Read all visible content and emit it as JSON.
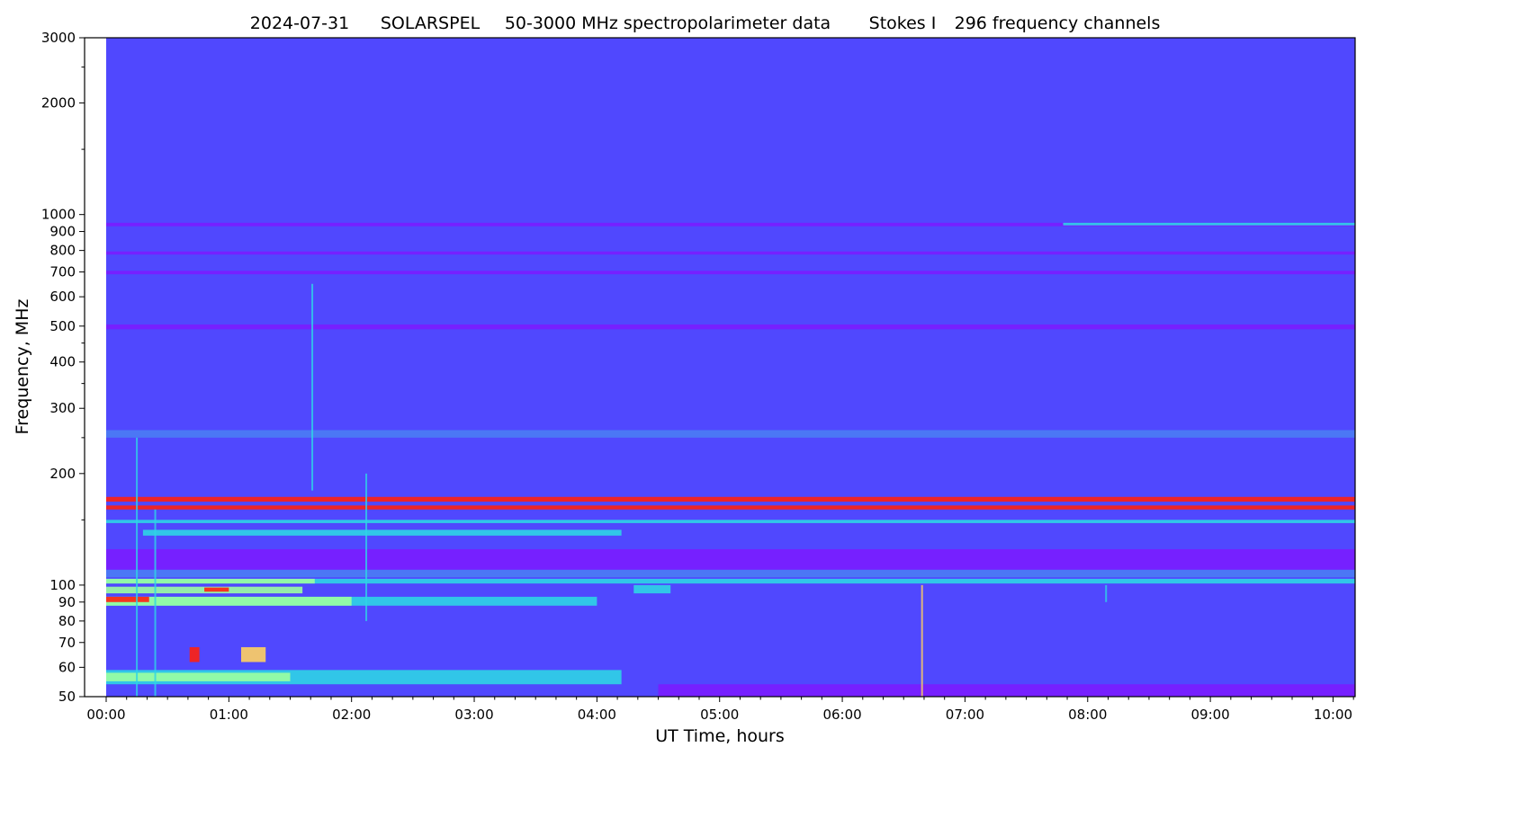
{
  "chart_data": {
    "type": "heatmap",
    "title_parts": [
      "2024-07-31",
      "SOLARSPEL",
      "50-3000 MHz spectropolarimeter data",
      "Stokes I",
      "296 frequency channels"
    ],
    "xlabel": "UT Time, hours",
    "ylabel": "Frequency, MHz",
    "x_range_hours": [
      -0.176,
      10.18
    ],
    "data_start_hours": 0,
    "y_range_mhz": [
      50,
      3000
    ],
    "y_scale": "log",
    "x_ticks": [
      {
        "h": 0,
        "label": "00:00"
      },
      {
        "h": 1,
        "label": "01:00"
      },
      {
        "h": 2,
        "label": "02:00"
      },
      {
        "h": 3,
        "label": "03:00"
      },
      {
        "h": 4,
        "label": "04:00"
      },
      {
        "h": 5,
        "label": "05:00"
      },
      {
        "h": 6,
        "label": "06:00"
      },
      {
        "h": 7,
        "label": "07:00"
      },
      {
        "h": 8,
        "label": "08:00"
      },
      {
        "h": 9,
        "label": "09:00"
      },
      {
        "h": 10,
        "label": "10:00"
      }
    ],
    "x_minor_step_minutes": 10,
    "y_ticks": [
      50,
      60,
      70,
      80,
      90,
      100,
      200,
      300,
      400,
      500,
      600,
      700,
      800,
      900,
      1000,
      2000,
      3000
    ],
    "y_minor_ticks": [
      150,
      250,
      350,
      450,
      1500,
      2500
    ],
    "grid": false,
    "colormap": "rainbow",
    "colors": {
      "background": "#5048fe",
      "purple": "#7a1cff",
      "blue": "#4a7cf4",
      "cyan": "#2ed4e6",
      "green": "#9cffa0",
      "yellow": "#ffd060",
      "red": "#ff2010"
    },
    "bands": [
      {
        "f": [
          930,
          950
        ],
        "t": [
          0,
          10.18
        ],
        "c": "purple"
      },
      {
        "f": [
          935,
          950
        ],
        "t": [
          7.8,
          10.18
        ],
        "c": "cyan"
      },
      {
        "f": [
          780,
          795
        ],
        "t": [
          0,
          10.18
        ],
        "c": "purple"
      },
      {
        "f": [
          690,
          705
        ],
        "t": [
          0,
          10.18
        ],
        "c": "purple"
      },
      {
        "f": [
          490,
          505
        ],
        "t": [
          0,
          10.18
        ],
        "c": "purple"
      },
      {
        "f": [
          250,
          262
        ],
        "t": [
          0,
          10.18
        ],
        "c": "blue"
      },
      {
        "f": [
          168,
          173
        ],
        "t": [
          0,
          10.18
        ],
        "c": "red"
      },
      {
        "f": [
          160,
          164
        ],
        "t": [
          0,
          10.18
        ],
        "c": "red"
      },
      {
        "f": [
          147,
          150
        ],
        "t": [
          0,
          10.18
        ],
        "c": "cyan"
      },
      {
        "f": [
          136,
          141
        ],
        "t": [
          0.3,
          4.2
        ],
        "c": "cyan"
      },
      {
        "f": [
          110,
          125
        ],
        "t": [
          0,
          10.18
        ],
        "c": "purple"
      },
      {
        "f": [
          105,
          110
        ],
        "t": [
          0,
          10.18
        ],
        "c": "blue"
      },
      {
        "f": [
          101,
          104
        ],
        "t": [
          0,
          10.18
        ],
        "c": "cyan"
      },
      {
        "f": [
          101,
          104
        ],
        "t": [
          0,
          1.7
        ],
        "c": "green"
      },
      {
        "f": [
          95,
          99
        ],
        "t": [
          0,
          1.6
        ],
        "c": "green"
      },
      {
        "f": [
          96,
          98.5
        ],
        "t": [
          0.8,
          1.0
        ],
        "c": "red"
      },
      {
        "f": [
          88,
          93
        ],
        "t": [
          0,
          4.0
        ],
        "c": "cyan"
      },
      {
        "f": [
          88,
          93
        ],
        "t": [
          0,
          2.0
        ],
        "c": "green"
      },
      {
        "f": [
          90,
          93
        ],
        "t": [
          0,
          0.35
        ],
        "c": "red"
      },
      {
        "f": [
          62,
          68
        ],
        "t": [
          0.68,
          0.76
        ],
        "c": "red"
      },
      {
        "f": [
          62,
          68
        ],
        "t": [
          1.1,
          1.3
        ],
        "c": "yellow"
      },
      {
        "f": [
          54,
          59
        ],
        "t": [
          0,
          4.2
        ],
        "c": "cyan"
      },
      {
        "f": [
          55,
          58
        ],
        "t": [
          0,
          1.5
        ],
        "c": "green"
      },
      {
        "f": [
          50,
          54
        ],
        "t": [
          4.5,
          10.18
        ],
        "c": "purple"
      },
      {
        "f": [
          95,
          100
        ],
        "t": [
          4.3,
          4.6
        ],
        "c": "cyan"
      }
    ],
    "streaks": [
      {
        "t": 0.25,
        "f": [
          50,
          250
        ],
        "c": "cyan"
      },
      {
        "t": 0.4,
        "f": [
          50,
          160
        ],
        "c": "cyan"
      },
      {
        "t": 1.68,
        "f": [
          180,
          650
        ],
        "c": "cyan"
      },
      {
        "t": 2.12,
        "f": [
          80,
          200
        ],
        "c": "cyan"
      },
      {
        "t": 6.65,
        "f": [
          50,
          100
        ],
        "c": "yellow"
      },
      {
        "t": 8.15,
        "f": [
          90,
          100
        ],
        "c": "cyan"
      }
    ]
  }
}
